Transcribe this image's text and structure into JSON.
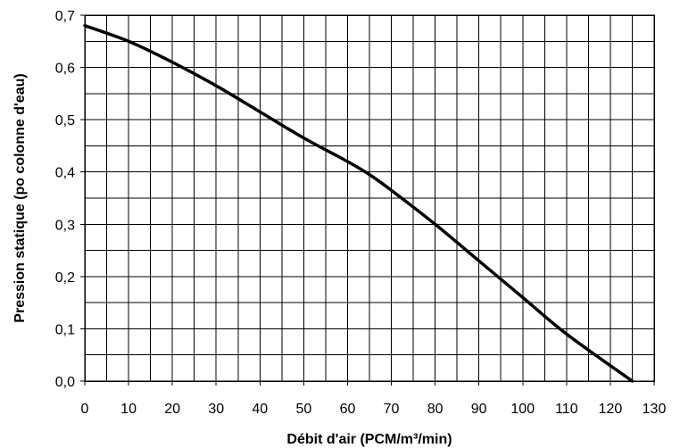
{
  "chart_data": {
    "type": "line",
    "xlabel": "Débit d'air (PCM/m³/min)",
    "ylabel": "Pression statique (po colonne d'eau)",
    "xlim": [
      0,
      130
    ],
    "ylim": [
      0,
      0.7
    ],
    "x_ticks": [
      "0",
      "10",
      "20",
      "30",
      "40",
      "50",
      "60",
      "70",
      "80",
      "90",
      "100",
      "110",
      "120",
      "130"
    ],
    "y_ticks": [
      "0,0",
      "0,1",
      "0,2",
      "0,3",
      "0,4",
      "0,5",
      "0,6",
      "0,7"
    ],
    "x_minor_step": 5,
    "y_minor_step": 0.05,
    "grid": true,
    "legend": "none",
    "series": [
      {
        "color": "#000000",
        "x": [
          0,
          10,
          20,
          30,
          40,
          50,
          60,
          65,
          70,
          80,
          90,
          100,
          110,
          125
        ],
        "y": [
          0.68,
          0.65,
          0.61,
          0.565,
          0.515,
          0.465,
          0.42,
          0.395,
          0.365,
          0.3,
          0.23,
          0.16,
          0.09,
          0.0
        ]
      }
    ]
  }
}
